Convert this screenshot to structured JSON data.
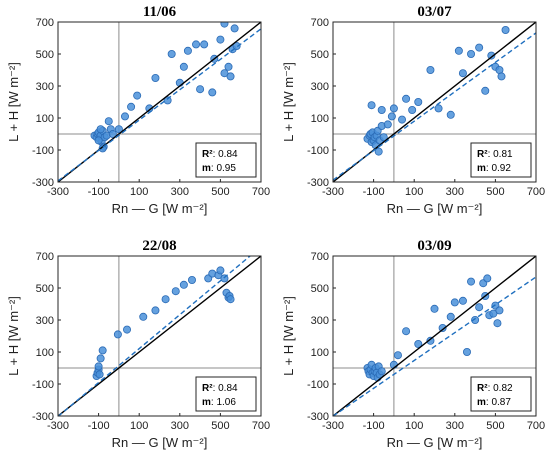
{
  "chart_data": [
    {
      "type": "scatter",
      "title": "11/06",
      "xlabel": "Rn — G [W m⁻²]",
      "ylabel": "L + H [W m⁻²]",
      "xlim": [
        -300,
        700
      ],
      "ylim": [
        -300,
        700
      ],
      "xticks": [
        "-300",
        "-100",
        "100",
        "300",
        "500",
        "700"
      ],
      "yticks": [
        "-300",
        "-100",
        "100",
        "300",
        "500",
        "700"
      ],
      "grid": false,
      "reference_lines": [
        "x = 0",
        "y = 0",
        "1:1 line",
        "regression fit (dashed)"
      ],
      "point_color": "#4a90d9",
      "line_color": "#000000",
      "fit_color": "#1f6fbf",
      "stats": {
        "r2_label": "R²",
        "r2_value": ": 0.84",
        "m_label": "m",
        "m_value": ": 0.95"
      },
      "fit_slope": 0.95,
      "fit_intercept": -8,
      "points": [
        [
          -120,
          -10
        ],
        [
          -110,
          -20
        ],
        [
          -105,
          0
        ],
        [
          -100,
          10
        ],
        [
          -95,
          -30
        ],
        [
          -90,
          -10
        ],
        [
          -85,
          -50
        ],
        [
          -80,
          20
        ],
        [
          -75,
          -80
        ],
        [
          -70,
          -20
        ],
        [
          -100,
          -40
        ],
        [
          -90,
          30
        ],
        [
          -80,
          -90
        ],
        [
          -60,
          -10
        ],
        [
          -50,
          80
        ],
        [
          -40,
          30
        ],
        [
          -30,
          0
        ],
        [
          0,
          30
        ],
        [
          30,
          110
        ],
        [
          60,
          170
        ],
        [
          90,
          240
        ],
        [
          150,
          160
        ],
        [
          180,
          350
        ],
        [
          240,
          210
        ],
        [
          260,
          500
        ],
        [
          300,
          320
        ],
        [
          320,
          420
        ],
        [
          340,
          520
        ],
        [
          380,
          560
        ],
        [
          420,
          560
        ],
        [
          400,
          280
        ],
        [
          460,
          260
        ],
        [
          470,
          470
        ],
        [
          500,
          590
        ],
        [
          520,
          380
        ],
        [
          520,
          690
        ],
        [
          540,
          420
        ],
        [
          550,
          360
        ],
        [
          560,
          530
        ],
        [
          580,
          550
        ],
        [
          570,
          660
        ]
      ]
    },
    {
      "type": "scatter",
      "title": "03/07",
      "xlabel": "Rn — G [W m⁻²]",
      "ylabel": "L + H [W m⁻²]",
      "xlim": [
        -300,
        700
      ],
      "ylim": [
        -300,
        700
      ],
      "xticks": [
        "-300",
        "-100",
        "100",
        "300",
        "500",
        "700"
      ],
      "yticks": [
        "-300",
        "-100",
        "100",
        "300",
        "500",
        "700"
      ],
      "grid": false,
      "reference_lines": [
        "x = 0",
        "y = 0",
        "1:1 line",
        "regression fit (dashed)"
      ],
      "point_color": "#4a90d9",
      "line_color": "#000000",
      "fit_color": "#1f6fbf",
      "stats": {
        "r2_label": "R²",
        "r2_value": ": 0.81",
        "m_label": "m",
        "m_value": ": 0.92"
      },
      "fit_slope": 0.92,
      "fit_intercept": -12,
      "points": [
        [
          -130,
          -30
        ],
        [
          -120,
          -10
        ],
        [
          -115,
          0
        ],
        [
          -110,
          -50
        ],
        [
          -105,
          10
        ],
        [
          -100,
          -40
        ],
        [
          -95,
          -20
        ],
        [
          -90,
          -70
        ],
        [
          -85,
          -10
        ],
        [
          -80,
          20
        ],
        [
          -75,
          -110
        ],
        [
          -70,
          -40
        ],
        [
          -60,
          50
        ],
        [
          -50,
          -20
        ],
        [
          -30,
          60
        ],
        [
          -10,
          110
        ],
        [
          -110,
          180
        ],
        [
          -60,
          150
        ],
        [
          0,
          160
        ],
        [
          40,
          90
        ],
        [
          60,
          220
        ],
        [
          90,
          150
        ],
        [
          120,
          200
        ],
        [
          180,
          400
        ],
        [
          220,
          160
        ],
        [
          280,
          120
        ],
        [
          320,
          520
        ],
        [
          340,
          380
        ],
        [
          380,
          500
        ],
        [
          420,
          540
        ],
        [
          450,
          270
        ],
        [
          480,
          490
        ],
        [
          500,
          420
        ],
        [
          520,
          400
        ],
        [
          530,
          360
        ],
        [
          550,
          650
        ]
      ]
    },
    {
      "type": "scatter",
      "title": "22/08",
      "xlabel": "Rn — G [W m⁻²]",
      "ylabel": "L + H [W m⁻²]",
      "xlim": [
        -300,
        700
      ],
      "ylim": [
        -300,
        700
      ],
      "xticks": [
        "-300",
        "-100",
        "100",
        "300",
        "500",
        "700"
      ],
      "yticks": [
        "-300",
        "-100",
        "100",
        "300",
        "500",
        "700"
      ],
      "grid": false,
      "reference_lines": [
        "x = 0",
        "y = 0",
        "1:1 line",
        "regression fit (dashed)"
      ],
      "point_color": "#4a90d9",
      "line_color": "#000000",
      "fit_color": "#1f6fbf",
      "stats": {
        "r2_label": "R²",
        "r2_value": ": 0.84",
        "m_label": "m",
        "m_value": ": 1.06"
      },
      "fit_slope": 1.06,
      "fit_intercept": 15,
      "points": [
        [
          -110,
          -50
        ],
        [
          -105,
          -30
        ],
        [
          -100,
          -10
        ],
        [
          -100,
          10
        ],
        [
          -95,
          -40
        ],
        [
          -90,
          60
        ],
        [
          -80,
          110
        ],
        [
          -5,
          210
        ],
        [
          40,
          240
        ],
        [
          120,
          320
        ],
        [
          180,
          360
        ],
        [
          230,
          430
        ],
        [
          280,
          480
        ],
        [
          320,
          520
        ],
        [
          360,
          550
        ],
        [
          440,
          560
        ],
        [
          460,
          590
        ],
        [
          490,
          580
        ],
        [
          500,
          610
        ],
        [
          520,
          560
        ],
        [
          530,
          470
        ],
        [
          540,
          440
        ],
        [
          545,
          450
        ],
        [
          550,
          430
        ]
      ]
    },
    {
      "type": "scatter",
      "title": "03/09",
      "xlabel": "Rn — G [W m⁻²]",
      "ylabel": "L + H [W m⁻²]",
      "xlim": [
        -300,
        700
      ],
      "ylim": [
        -300,
        700
      ],
      "xticks": [
        "-300",
        "-100",
        "100",
        "300",
        "500",
        "700"
      ],
      "yticks": [
        "-300",
        "-100",
        "100",
        "300",
        "500",
        "700"
      ],
      "grid": false,
      "reference_lines": [
        "x = 0",
        "y = 0",
        "1:1 line",
        "regression fit (dashed)"
      ],
      "point_color": "#4a90d9",
      "line_color": "#000000",
      "fit_color": "#1f6fbf",
      "stats": {
        "r2_label": "R²",
        "r2_value": ": 0.82",
        "m_label": "m",
        "m_value": ": 0.87"
      },
      "fit_slope": 0.87,
      "fit_intercept": -40,
      "points": [
        [
          -130,
          0
        ],
        [
          -125,
          -20
        ],
        [
          -120,
          -40
        ],
        [
          -115,
          -10
        ],
        [
          -110,
          20
        ],
        [
          -105,
          -30
        ],
        [
          -100,
          -50
        ],
        [
          -95,
          -20
        ],
        [
          -90,
          0
        ],
        [
          -85,
          -30
        ],
        [
          -80,
          -60
        ],
        [
          -75,
          10
        ],
        [
          -70,
          -40
        ],
        [
          -60,
          -20
        ],
        [
          0,
          20
        ],
        [
          20,
          80
        ],
        [
          60,
          230
        ],
        [
          120,
          150
        ],
        [
          180,
          170
        ],
        [
          200,
          370
        ],
        [
          240,
          250
        ],
        [
          280,
          320
        ],
        [
          300,
          410
        ],
        [
          340,
          420
        ],
        [
          360,
          100
        ],
        [
          380,
          540
        ],
        [
          400,
          300
        ],
        [
          420,
          380
        ],
        [
          440,
          530
        ],
        [
          450,
          450
        ],
        [
          460,
          560
        ],
        [
          470,
          330
        ],
        [
          490,
          340
        ],
        [
          500,
          390
        ],
        [
          510,
          280
        ],
        [
          520,
          360
        ]
      ]
    }
  ]
}
